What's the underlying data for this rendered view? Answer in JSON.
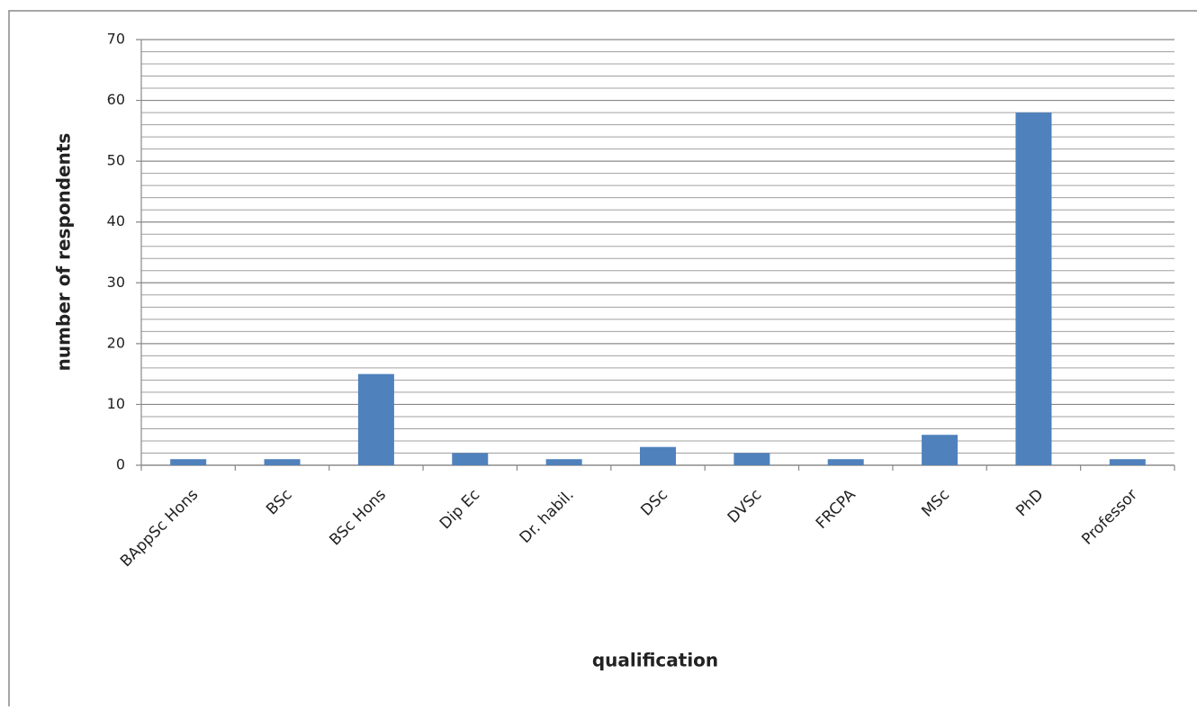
{
  "chart_data": {
    "type": "bar",
    "x_label": "qualification",
    "y_label": "number of respondents",
    "categories": [
      "BAppSc Hons",
      "BSc",
      "BSc Hons",
      "Dip Ec",
      "Dr. habil.",
      "DSc",
      "DVSc",
      "FRCPA",
      "MSc",
      "PhD",
      "Professor"
    ],
    "values": [
      1,
      1,
      15,
      2,
      1,
      3,
      2,
      1,
      5,
      58,
      1
    ],
    "color": "#4f81bd",
    "ylim": [
      0,
      70
    ],
    "yticks": [
      0,
      10,
      20,
      30,
      40,
      50,
      60,
      70
    ],
    "minor_yticks": [
      2,
      4,
      6,
      8,
      12,
      14,
      16,
      18,
      22,
      24,
      26,
      28,
      32,
      34,
      36,
      38,
      42,
      44,
      46,
      48,
      52,
      54,
      56,
      58,
      62,
      64,
      66,
      68
    ],
    "grid": true
  }
}
